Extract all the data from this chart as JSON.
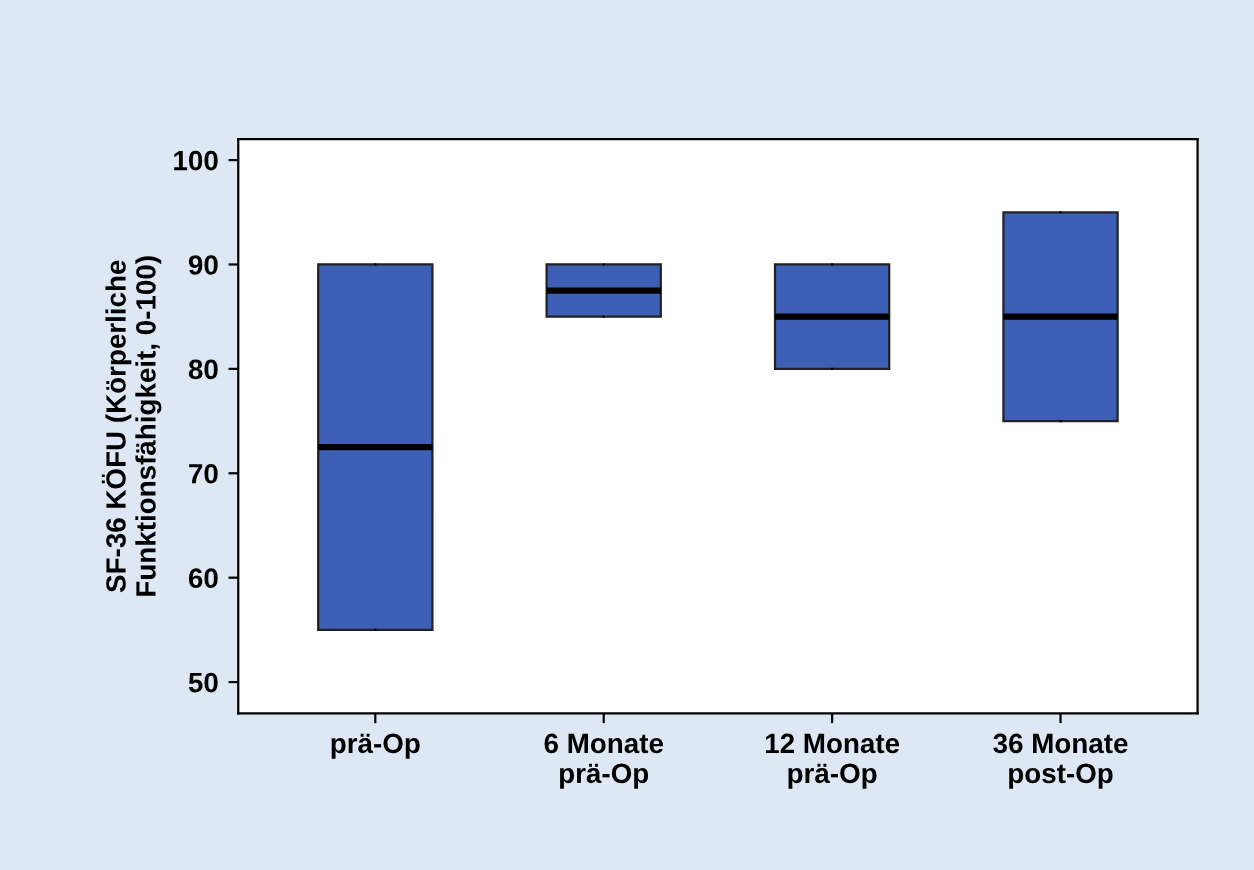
{
  "chart_data": {
    "type": "box",
    "ylabel": "SF-36 KÖFU (Körperliche\nFunktionsfähigkeit, 0-100)",
    "categories": [
      "prä-Op",
      "6 Monate\nprä-Op",
      "12 Monate\nprä-Op",
      "36 Monate\npost-Op"
    ],
    "boxes": [
      {
        "low": 55,
        "q1": 55,
        "median": 72.5,
        "q3": 90,
        "high": 90
      },
      {
        "low": 85,
        "q1": 85,
        "median": 87.5,
        "q3": 90,
        "high": 90
      },
      {
        "low": 80,
        "q1": 80,
        "median": 85,
        "q3": 90,
        "high": 90
      },
      {
        "low": 75,
        "q1": 75,
        "median": 85,
        "q3": 95,
        "high": 95
      }
    ],
    "color": "#3d5fb5",
    "ylim": [
      47,
      102
    ],
    "yticks": [
      50,
      60,
      70,
      80,
      90,
      100
    ],
    "grid": false,
    "legend": false
  }
}
